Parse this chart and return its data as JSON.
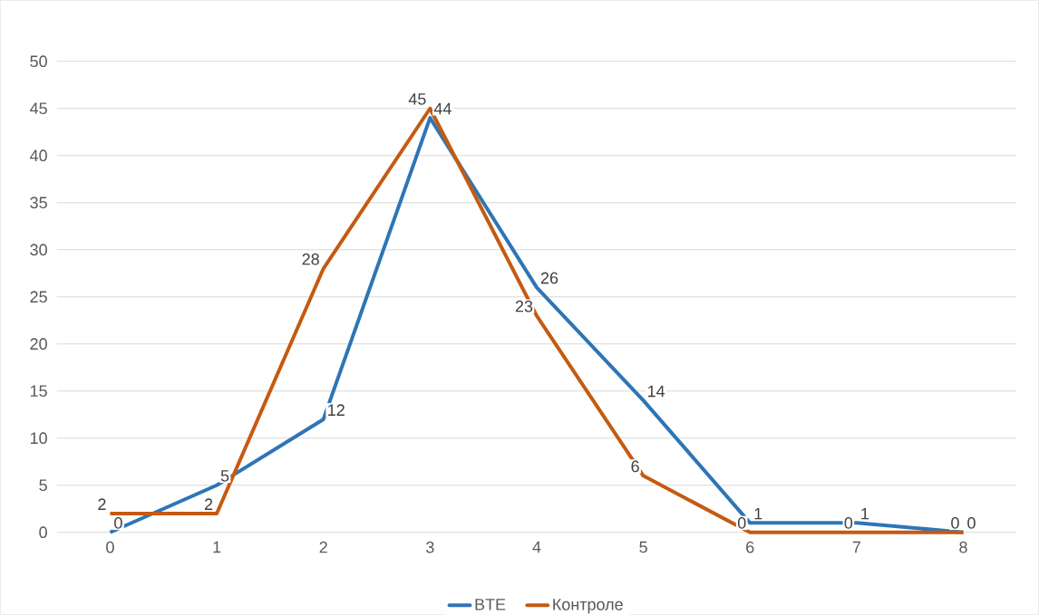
{
  "chart_data": {
    "type": "line",
    "categories": [
      "0",
      "1",
      "2",
      "3",
      "4",
      "5",
      "6",
      "7",
      "8"
    ],
    "series": [
      {
        "name": "BTE",
        "color": "#2e75b6",
        "values": [
          0,
          5,
          12,
          44,
          26,
          14,
          1,
          1,
          0
        ]
      },
      {
        "name": "Контроле",
        "color": "#c55a11",
        "values": [
          2,
          2,
          28,
          45,
          23,
          6,
          0,
          0,
          0
        ]
      }
    ],
    "ylim": [
      0,
      50
    ],
    "yticks": [
      0,
      5,
      10,
      15,
      20,
      25,
      30,
      35,
      40,
      45,
      50
    ],
    "grid": "y",
    "legend": "bottom",
    "data_labels": true,
    "marker": "none",
    "line_style": "solid"
  }
}
